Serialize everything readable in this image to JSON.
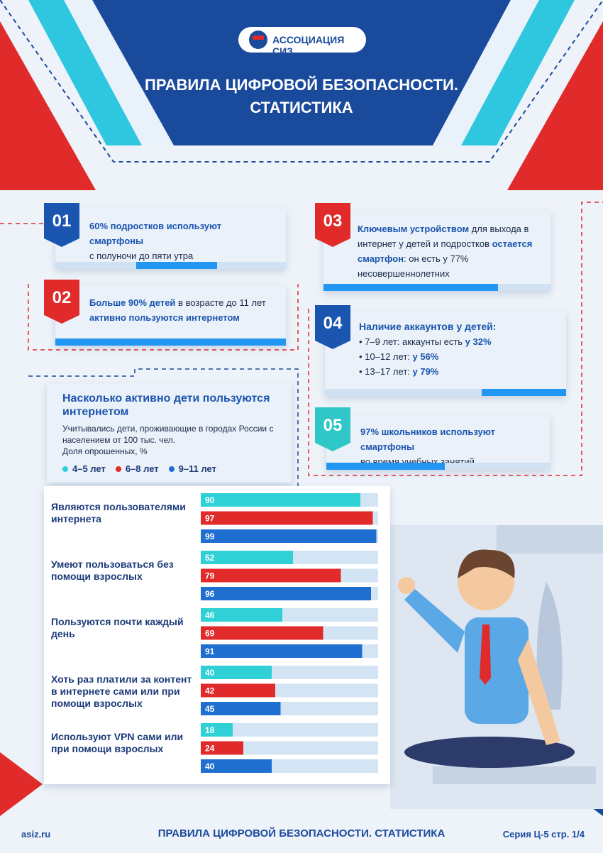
{
  "header": {
    "org": "АССОЦИАЦИЯ СИЗ",
    "title_lines": [
      "ПРАВИЛА ЦИФРОВОЙ БЕЗОПАСНОСТИ.",
      "СТАТИСТИКА"
    ]
  },
  "cards": [
    {
      "number": "01",
      "parts": [
        "60% подростков используют смартфоны",
        "с полуночи до пяти утра"
      ]
    },
    {
      "number": "02",
      "parts": [
        "Больше 90% детей",
        " в возрасте до 11 лет",
        "активно пользуются интернетом"
      ]
    },
    {
      "number": "03",
      "parts": [
        "Ключевым устройством",
        " для выхода в интернет у детей и подростков ",
        "остается смартфон",
        ": он есть у 77% несовершеннолетних"
      ]
    },
    {
      "number": "04",
      "title": "Наличие аккаунтов у детей:",
      "items": [
        [
          "7–9 лет: аккаунты есть ",
          "у 32%"
        ],
        [
          "10–12 лет: ",
          "у 56%"
        ],
        [
          "13–17 лет: ",
          "у 79%"
        ]
      ]
    },
    {
      "number": "05",
      "parts": [
        "97% школьников используют смартфоны",
        "во время учебных занятий"
      ]
    }
  ],
  "chart_data": {
    "type": "bar",
    "title": "Насколько активно дети пользуются интернетом",
    "subtitle": "Учитывались дети, проживающие в городах России с населением от 100 тыс. чел.",
    "note": "Доля опрошенных, %",
    "categories": [
      "Являются пользователями интернета",
      "Умеют пользоваться без помощи взрослых",
      "Пользуются почти каждый день",
      "Хоть раз платили за контент в интернете сами или при помощи взрослых",
      "Используют VPN сами или при помощи взрослых"
    ],
    "series": [
      {
        "name": "4–5 лет",
        "color": "#2fd0d6",
        "values": [
          90,
          52,
          46,
          40,
          18
        ]
      },
      {
        "name": "6–8 лет",
        "color": "#e12a2a",
        "values": [
          97,
          79,
          69,
          42,
          24
        ]
      },
      {
        "name": "9–11 лет",
        "color": "#1f6fd1",
        "values": [
          99,
          96,
          91,
          45,
          40
        ]
      }
    ],
    "xlim": [
      0,
      100
    ]
  },
  "footer": {
    "site": "asiz.ru",
    "title": "ПРАВИЛА ЦИФРОВОЙ БЕЗОПАСНОСТИ. СТАТИСТИКА",
    "series": "Серия Ц-5 стр. 1/4"
  }
}
